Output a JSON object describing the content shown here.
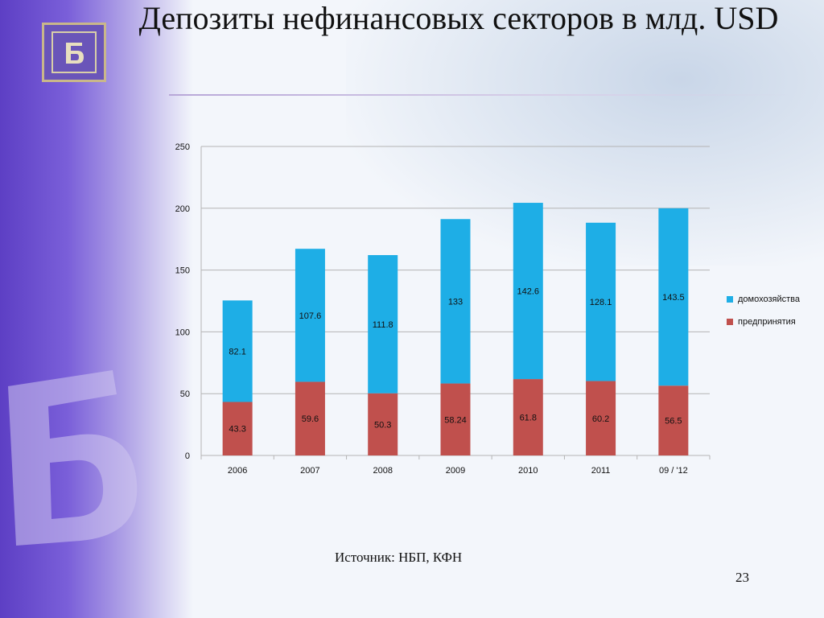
{
  "slide": {
    "title": "Депозиты нефинансовых секторов в млд. USD",
    "source": "Источник:  НБП, КФН",
    "page_number": "23"
  },
  "colors": {
    "households": "#1eaee6",
    "enterprises": "#c0504d",
    "grid": "#b4b4b4"
  },
  "icons": {
    "logo": "bank-monogram-icon",
    "watermark": "bank-monogram-watermark-icon"
  },
  "chart_data": {
    "type": "bar",
    "stacked": true,
    "categories": [
      "2006",
      "2007",
      "2008",
      "2009",
      "2010",
      "2011",
      "09 / '12"
    ],
    "series": [
      {
        "name": "предпринятия",
        "values": [
          43.3,
          59.6,
          50.3,
          58.24,
          61.8,
          60.2,
          56.5
        ]
      },
      {
        "name": "домохозяйства",
        "values": [
          82.1,
          107.6,
          111.8,
          133,
          142.6,
          128.1,
          143.5
        ]
      }
    ],
    "ylim": [
      0,
      250
    ],
    "yticks": [
      0,
      50,
      100,
      150,
      200,
      250
    ],
    "grid": true,
    "legend_position": "right"
  }
}
